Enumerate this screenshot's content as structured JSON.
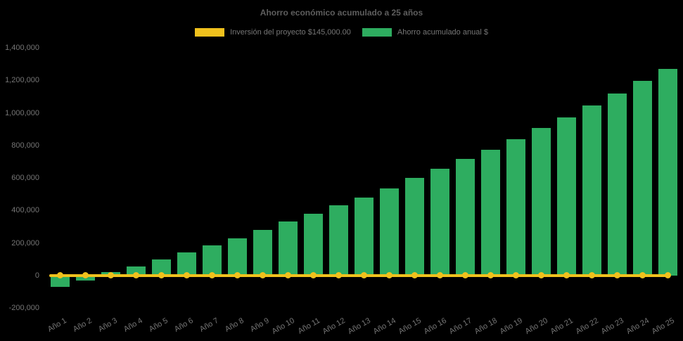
{
  "chart_data": {
    "type": "bar",
    "title": "Ahorro económico acumulado a 25 años",
    "background_color": "#000000",
    "title_color": "#5e5e5e",
    "label_color": "#757575",
    "grid": false,
    "legend_position": "top",
    "x_label_rotation": -30,
    "ylim": [
      -200000,
      1400000
    ],
    "y_ticks": [
      "1,400,000",
      "1,200,000",
      "1,000,000",
      "800,000",
      "600,000",
      "400,000",
      "200,000",
      "0",
      "-200,000"
    ],
    "categories": [
      "Año 1",
      "Año 2",
      "Año 3",
      "Año 4",
      "Año 5",
      "Año 6",
      "Año 7",
      "Año 8",
      "Año 9",
      "Año 10",
      "Año 11",
      "Año 12",
      "Año 13",
      "Año 14",
      "Año 15",
      "Año 16",
      "Año 17",
      "Año 18",
      "Año 19",
      "Año 20",
      "Año 21",
      "Año 22",
      "Año 23",
      "Año 24",
      "Año 25"
    ],
    "series": [
      {
        "name": "Inversión del proyecto $145,000.00",
        "type": "line",
        "color": "#F0C11D",
        "values": [
          0,
          0,
          0,
          0,
          0,
          0,
          0,
          0,
          0,
          0,
          0,
          0,
          0,
          0,
          0,
          0,
          0,
          0,
          0,
          0,
          0,
          0,
          0,
          0,
          0
        ]
      },
      {
        "name": "Ahorro acumulado anual $",
        "type": "bar",
        "color": "#2EAD60",
        "values": [
          -70000,
          -30000,
          20000,
          55000,
          97000,
          140000,
          184000,
          230000,
          280000,
          330000,
          381000,
          432000,
          480000,
          537000,
          598000,
          657000,
          718000,
          775000,
          840000,
          908000,
          973000,
          1046000,
          1120000,
          1195000,
          1270000
        ]
      }
    ]
  }
}
